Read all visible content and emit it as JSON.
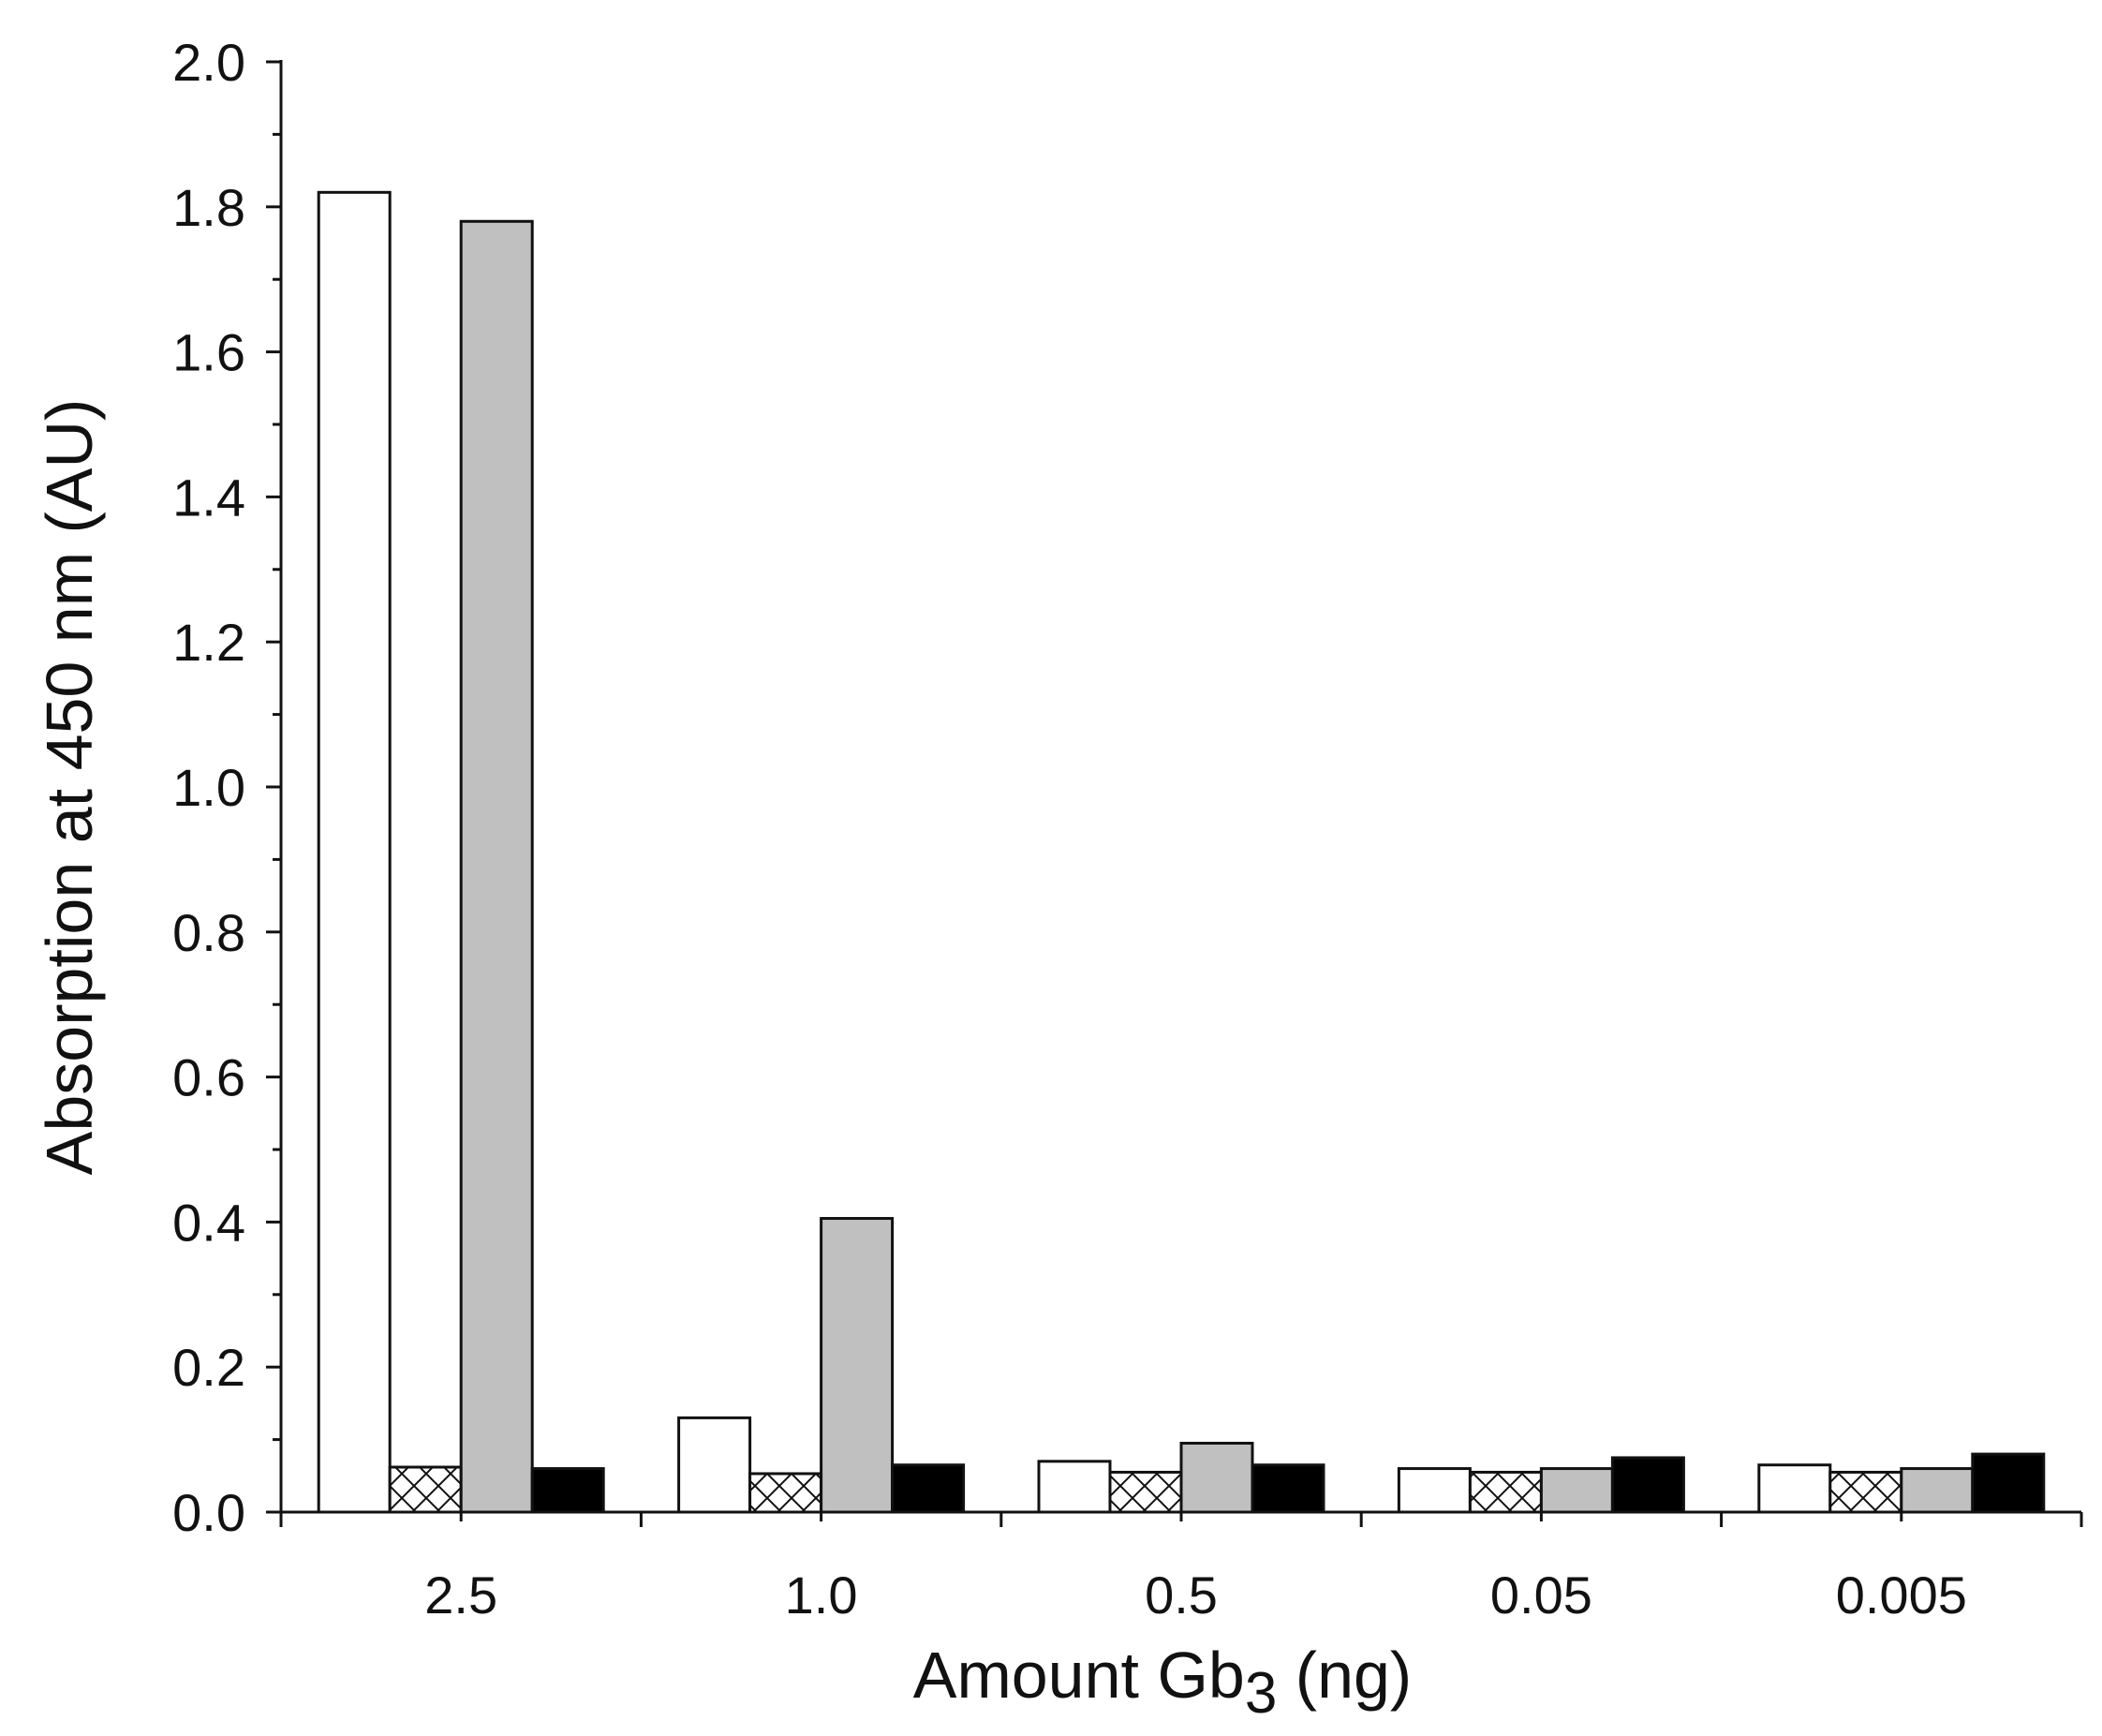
{
  "chart_data": {
    "type": "bar",
    "title": "",
    "xlabel": "Amount Gb",
    "xlabel_subscript": "3",
    "xlabel_suffix": " (ng)",
    "ylabel": "Absorption at 450 nm (AU)",
    "ylim": [
      0,
      2.0
    ],
    "yticks": [
      "0.0",
      "0.2",
      "0.4",
      "0.6",
      "0.8",
      "1.0",
      "1.2",
      "1.4",
      "1.6",
      "1.8",
      "2.0"
    ],
    "categories": [
      "2.5",
      "1.0",
      "0.5",
      "0.05",
      "0.005"
    ],
    "grid": false,
    "legend": "none",
    "series": [
      {
        "fill": "#ffffff",
        "pattern": "none",
        "values": [
          1.82,
          0.13,
          0.07,
          0.06,
          0.065
        ]
      },
      {
        "fill": "#ffffff",
        "pattern": "crosshatch",
        "values": [
          0.062,
          0.053,
          0.055,
          0.055,
          0.055
        ]
      },
      {
        "fill": "#c0c0c0",
        "pattern": "none",
        "values": [
          1.78,
          0.405,
          0.095,
          0.06,
          0.06
        ]
      },
      {
        "fill": "#000000",
        "pattern": "none",
        "values": [
          0.06,
          0.065,
          0.065,
          0.075,
          0.08
        ]
      }
    ]
  }
}
